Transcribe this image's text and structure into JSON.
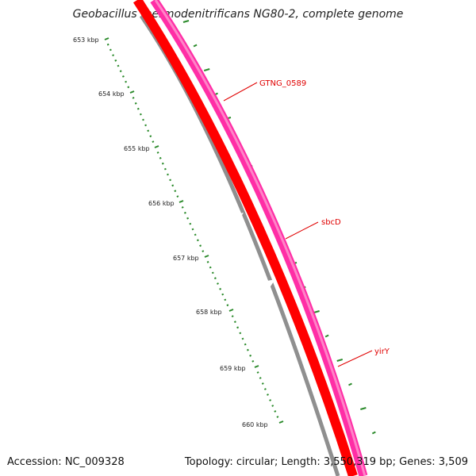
{
  "title": "Geobacillus thermodenitrificans NG80-2, complete genome",
  "footer": {
    "accession": "Accession: NC_009328",
    "summary": "Topology: circular; Length: 3,550,319 bp; Genes: 3,509"
  },
  "scale_labels": [
    "653 kbp",
    "654 kbp",
    "655 kbp",
    "656 kbp",
    "657 kbp",
    "658 kbp",
    "659 kbp",
    "660 kbp"
  ],
  "genes": [
    {
      "name": "GTNG_0589"
    },
    {
      "name": "sbcD"
    },
    {
      "name": "yirY"
    }
  ],
  "colors": {
    "backbone": "#8f8f8f",
    "gene_red": "#ff0000",
    "gene_pink": "#ff2ea6",
    "tick_green": "#2a8a2a"
  }
}
